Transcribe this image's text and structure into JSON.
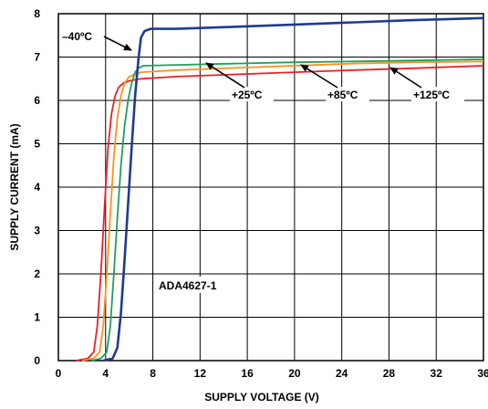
{
  "chart_data": {
    "type": "line",
    "title": "",
    "xlabel": "SUPPLY VOLTAGE (V)",
    "ylabel": "SUPPLY CURRENT (mA)",
    "xlim": [
      0,
      36
    ],
    "ylim": [
      0,
      8
    ],
    "xticks": [
      "0",
      "4",
      "8",
      "12",
      "16",
      "20",
      "24",
      "28",
      "32",
      "36"
    ],
    "yticks": [
      "0",
      "1",
      "2",
      "3",
      "4",
      "5",
      "6",
      "7",
      "8"
    ],
    "grid": true,
    "annotation": "ADA4627-1",
    "series": [
      {
        "name": "+125ºC",
        "color": "#e8202a",
        "x": [
          1.5,
          2.5,
          3.0,
          3.3,
          3.6,
          3.9,
          4.2,
          4.5,
          4.8,
          5.1,
          5.5,
          6.0,
          7.0,
          10,
          15,
          20,
          25,
          30,
          36
        ],
        "y": [
          0.0,
          0.05,
          0.2,
          0.8,
          2.0,
          3.5,
          4.9,
          5.7,
          6.1,
          6.3,
          6.4,
          6.45,
          6.5,
          6.55,
          6.6,
          6.65,
          6.7,
          6.74,
          6.8
        ]
      },
      {
        "name": "+85ºC",
        "color": "#f7941d",
        "x": [
          2.0,
          3.0,
          3.5,
          3.8,
          4.1,
          4.4,
          4.7,
          5.0,
          5.3,
          5.6,
          6.0,
          6.5,
          7.0,
          10,
          15,
          20,
          25,
          30,
          36
        ],
        "y": [
          0.0,
          0.05,
          0.2,
          0.8,
          2.0,
          3.4,
          4.7,
          5.6,
          6.1,
          6.4,
          6.55,
          6.6,
          6.65,
          6.7,
          6.75,
          6.8,
          6.85,
          6.88,
          6.9
        ]
      },
      {
        "name": "+25ºC",
        "color": "#1fa05a",
        "x": [
          2.8,
          3.6,
          4.1,
          4.4,
          4.7,
          5.0,
          5.3,
          5.6,
          5.9,
          6.2,
          6.5,
          6.8,
          7.2,
          10,
          15,
          20,
          25,
          30,
          36
        ],
        "y": [
          0.0,
          0.05,
          0.2,
          0.8,
          2.0,
          3.3,
          4.5,
          5.4,
          6.0,
          6.4,
          6.65,
          6.75,
          6.8,
          6.82,
          6.85,
          6.88,
          6.9,
          6.92,
          6.95
        ]
      },
      {
        "name": "–40ºC",
        "color": "#1f3a93",
        "x": [
          3.8,
          4.6,
          5.0,
          5.3,
          5.6,
          5.9,
          6.2,
          6.5,
          6.8,
          7.0,
          7.3,
          7.8,
          8.5,
          10,
          15,
          20,
          25,
          30,
          36
        ],
        "y": [
          0.0,
          0.05,
          0.3,
          1.1,
          2.3,
          3.6,
          4.9,
          6.1,
          7.0,
          7.45,
          7.6,
          7.65,
          7.65,
          7.65,
          7.7,
          7.75,
          7.8,
          7.85,
          7.9
        ]
      }
    ]
  }
}
